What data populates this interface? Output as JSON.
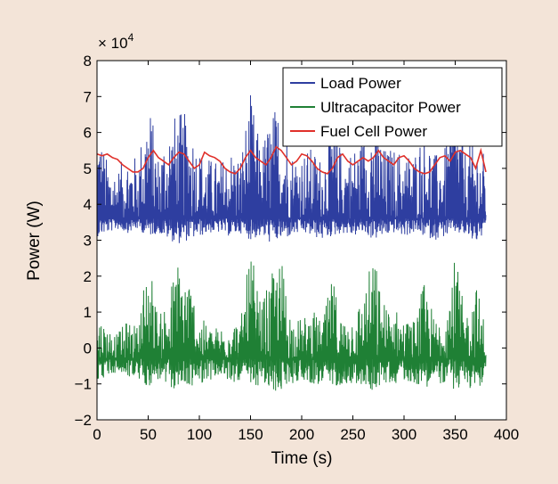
{
  "chart_data": {
    "type": "line",
    "xlabel": "Time (s)",
    "ylabel": "Power (W)",
    "y_multiplier_label": "× 10",
    "y_multiplier_exponent": "4",
    "y_scale_factor": 10000,
    "xlim": [
      0,
      400
    ],
    "ylim": [
      -2,
      8
    ],
    "x_ticks": [
      0,
      50,
      100,
      150,
      200,
      250,
      300,
      350,
      400
    ],
    "y_ticks": [
      -2,
      -1,
      0,
      1,
      2,
      3,
      4,
      5,
      6,
      7,
      8
    ],
    "grid": false,
    "legend_position": "top-right",
    "plot_background": "#ffffff",
    "x_end": 380,
    "series": [
      {
        "name": "Load Power",
        "color": "#2e3ea0",
        "baseline": 3.6,
        "envelope_x": [
          0,
          10,
          20,
          30,
          40,
          50,
          60,
          70,
          80,
          90,
          100,
          110,
          120,
          130,
          140,
          150,
          160,
          170,
          180,
          190,
          200,
          210,
          220,
          230,
          240,
          250,
          260,
          270,
          280,
          290,
          300,
          310,
          320,
          330,
          340,
          350,
          360,
          370,
          380
        ],
        "envelope_min": [
          3.1,
          3.2,
          3.3,
          3.2,
          3.3,
          3.1,
          3.2,
          3.0,
          2.9,
          3.0,
          3.1,
          3.2,
          3.2,
          3.1,
          3.2,
          3.0,
          3.1,
          2.9,
          3.0,
          3.1,
          3.2,
          3.1,
          3.0,
          3.1,
          3.2,
          3.1,
          3.2,
          3.0,
          3.1,
          3.2,
          3.1,
          3.2,
          3.1,
          3.0,
          3.1,
          3.2,
          3.1,
          2.9,
          3.2
        ],
        "envelope_max": [
          6.5,
          5.2,
          5.0,
          5.5,
          5.3,
          7.1,
          5.4,
          6.4,
          6.6,
          6.5,
          5.6,
          5.3,
          5.2,
          5.6,
          5.4,
          7.1,
          5.6,
          6.6,
          6.9,
          5.5,
          5.5,
          5.6,
          5.3,
          6.5,
          5.4,
          5.6,
          5.9,
          6.8,
          5.6,
          5.6,
          5.5,
          5.5,
          6.3,
          5.4,
          5.6,
          7.1,
          5.5,
          5.9,
          5.3
        ]
      },
      {
        "name": "Ultracapacitor Power",
        "color": "#1f8035",
        "baseline": -0.3,
        "envelope_x": [
          0,
          10,
          20,
          30,
          40,
          50,
          60,
          70,
          80,
          90,
          100,
          110,
          120,
          130,
          140,
          150,
          160,
          170,
          180,
          190,
          200,
          210,
          220,
          230,
          240,
          250,
          260,
          270,
          280,
          290,
          300,
          310,
          320,
          330,
          340,
          350,
          360,
          370,
          380
        ],
        "envelope_min": [
          -0.9,
          -0.8,
          -0.7,
          -0.8,
          -0.9,
          -1.1,
          -0.9,
          -1.2,
          -1.1,
          -1.1,
          -1.0,
          -0.9,
          -0.8,
          -1.0,
          -0.9,
          -1.2,
          -1.0,
          -1.3,
          -1.2,
          -1.0,
          -0.9,
          -1.0,
          -1.1,
          -1.1,
          -1.0,
          -1.0,
          -1.1,
          -1.2,
          -1.0,
          -1.0,
          -0.9,
          -1.0,
          -1.1,
          -1.0,
          -1.0,
          -1.2,
          -1.1,
          -1.2,
          -0.9
        ],
        "envelope_max": [
          1.0,
          0.6,
          0.4,
          0.8,
          0.6,
          2.8,
          0.8,
          1.6,
          2.6,
          2.1,
          0.9,
          0.6,
          0.6,
          0.9,
          0.7,
          2.8,
          1.2,
          2.0,
          2.6,
          0.9,
          0.8,
          1.1,
          0.7,
          2.0,
          0.8,
          1.0,
          1.5,
          2.7,
          1.3,
          1.2,
          0.8,
          0.8,
          1.9,
          0.8,
          1.2,
          2.6,
          0.9,
          1.9,
          0.6
        ]
      },
      {
        "name": "Fuel Cell Power",
        "color": "#e0302a",
        "x": [
          0,
          5,
          10,
          15,
          20,
          25,
          30,
          35,
          40,
          45,
          50,
          55,
          60,
          65,
          70,
          75,
          80,
          85,
          90,
          95,
          100,
          105,
          110,
          115,
          120,
          125,
          130,
          135,
          140,
          145,
          150,
          155,
          160,
          165,
          170,
          175,
          180,
          185,
          190,
          195,
          200,
          205,
          210,
          215,
          220,
          225,
          230,
          235,
          240,
          245,
          250,
          255,
          260,
          265,
          270,
          275,
          280,
          285,
          290,
          295,
          300,
          305,
          310,
          315,
          320,
          325,
          330,
          335,
          340,
          345,
          350,
          355,
          360,
          365,
          370,
          375,
          380
        ],
        "y": [
          5.4,
          5.35,
          5.4,
          5.3,
          5.25,
          5.1,
          5.0,
          4.9,
          4.9,
          5.0,
          5.3,
          5.5,
          5.3,
          5.2,
          5.1,
          5.3,
          5.45,
          5.4,
          5.2,
          5.0,
          5.1,
          5.45,
          5.35,
          5.3,
          5.2,
          5.0,
          4.9,
          4.85,
          5.0,
          5.3,
          5.5,
          5.3,
          5.2,
          5.1,
          5.3,
          5.6,
          5.5,
          5.3,
          5.1,
          5.2,
          5.4,
          5.35,
          5.2,
          5.0,
          4.9,
          4.85,
          5.0,
          5.3,
          5.4,
          5.2,
          5.1,
          5.2,
          5.3,
          5.2,
          5.3,
          5.5,
          5.3,
          5.2,
          5.1,
          5.3,
          5.35,
          5.2,
          5.0,
          4.9,
          4.85,
          4.9,
          5.1,
          5.3,
          5.35,
          5.2,
          5.45,
          5.5,
          5.4,
          5.3,
          5.0,
          5.5,
          4.9
        ]
      }
    ]
  }
}
